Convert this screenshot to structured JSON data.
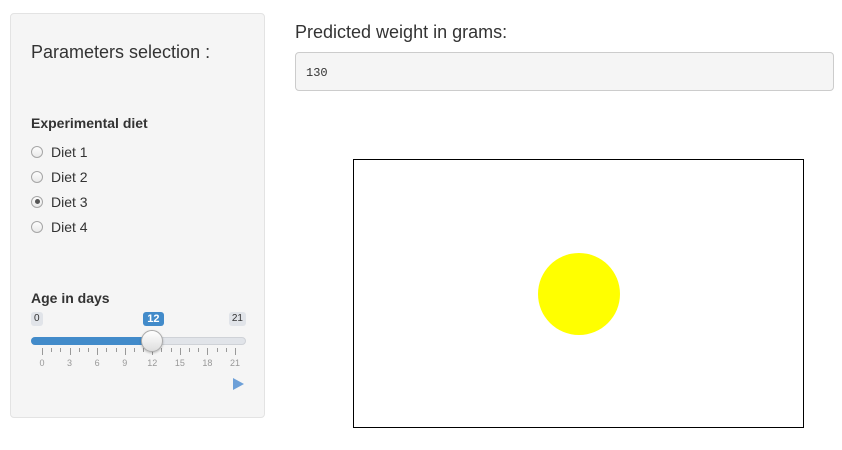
{
  "sidebar": {
    "title": "Parameters selection :",
    "diet": {
      "label": "Experimental diet",
      "options": [
        {
          "label": "Diet 1",
          "checked": false
        },
        {
          "label": "Diet 2",
          "checked": false
        },
        {
          "label": "Diet 3",
          "checked": true
        },
        {
          "label": "Diet 4",
          "checked": false
        }
      ]
    },
    "age": {
      "label": "Age in days",
      "min": 0,
      "max": 21,
      "value": 12,
      "min_label": "0",
      "max_label": "21",
      "value_label": "12",
      "tick_labels": [
        "0",
        "3",
        "6",
        "9",
        "12",
        "15",
        "18",
        "21"
      ],
      "play_icon": "play-icon"
    }
  },
  "main": {
    "output_label": "Predicted weight in grams:",
    "output_value": "130",
    "plot_circle_color": "#ffff00"
  },
  "colors": {
    "accent": "#428bca",
    "sidebar_bg": "#f5f5f5"
  }
}
